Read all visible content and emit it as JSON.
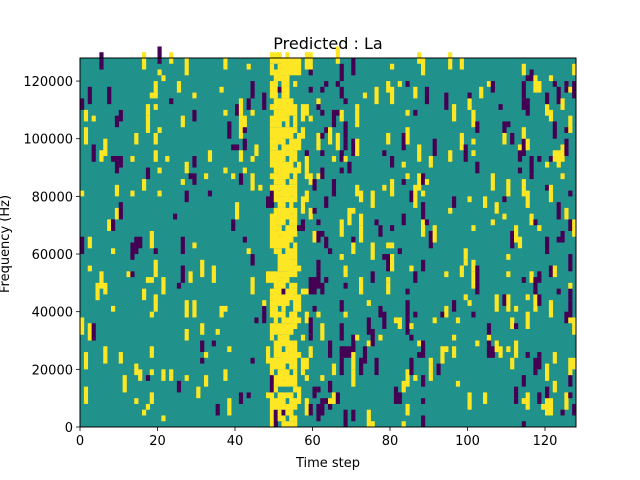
{
  "chart_data": {
    "type": "heatmap",
    "title": "Predicted : La",
    "xlabel": "Time step",
    "ylabel": "Frequency (Hz)",
    "xlim": [
      0,
      128
    ],
    "ylim": [
      0,
      128000
    ],
    "xticks": [
      0,
      20,
      40,
      60,
      80,
      100,
      120
    ],
    "yticks": [
      0,
      20000,
      40000,
      60000,
      80000,
      100000,
      120000
    ],
    "colormap": "viridis",
    "colors": {
      "background": "#21918c",
      "high": "#fde725",
      "low": "#440154"
    },
    "grid": false,
    "legend": "none"
  }
}
